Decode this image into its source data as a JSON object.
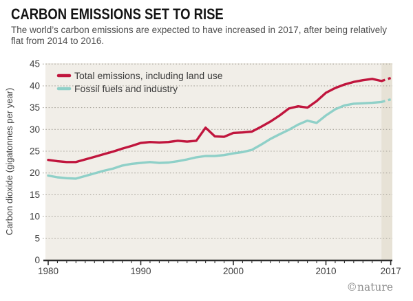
{
  "header": {
    "title": "CARBON EMISSIONS SET TO RISE",
    "subtitle_line1": "The world’s carbon emissions are expected to have increased in 2017, after being relatively",
    "subtitle_line2": "flat from 2014 to 2016."
  },
  "credit": "©nature",
  "colors": {
    "total": "#c0153d",
    "fossil": "#8fd0c8",
    "plot_bg": "#f1eee8",
    "projection_band": "#e7e2d6",
    "gridline": "#a9a59c",
    "axis": "#2b2b2b",
    "text": "#3d3d3d"
  },
  "chart_data": {
    "type": "line",
    "title": "CARBON EMISSIONS SET TO RISE",
    "xlabel": "",
    "ylabel": "Carbon dioxide (gigatonnes per year)",
    "ylim": [
      0,
      45
    ],
    "xlim": [
      1980,
      2017
    ],
    "grid": "horizontal-dotted",
    "legend_position": "top-left-inside",
    "projection_band_start": 2016,
    "y_ticks": [
      0,
      5,
      10,
      15,
      20,
      25,
      30,
      35,
      40,
      45
    ],
    "x_tick_labels": [
      1980,
      1990,
      2000,
      2010,
      2017
    ],
    "x": [
      1980,
      1981,
      1982,
      1983,
      1984,
      1985,
      1986,
      1987,
      1988,
      1989,
      1990,
      1991,
      1992,
      1993,
      1994,
      1995,
      1996,
      1997,
      1998,
      1999,
      2000,
      2001,
      2002,
      2003,
      2004,
      2005,
      2006,
      2007,
      2008,
      2009,
      2010,
      2011,
      2012,
      2013,
      2014,
      2015,
      2016,
      2017
    ],
    "series": [
      {
        "name": "Total emissions, including land use",
        "color": "#c0153d",
        "dashed_from": 2016,
        "values": [
          23.0,
          22.7,
          22.5,
          22.5,
          23.1,
          23.7,
          24.3,
          24.9,
          25.6,
          26.2,
          26.9,
          27.1,
          27.0,
          27.1,
          27.4,
          27.2,
          27.4,
          30.4,
          28.4,
          28.3,
          29.2,
          29.3,
          29.5,
          30.6,
          31.8,
          33.2,
          34.8,
          35.3,
          35.0,
          36.5,
          38.4,
          39.5,
          40.3,
          40.9,
          41.3,
          41.6,
          41.1,
          41.8
        ]
      },
      {
        "name": "Fossil fuels and industry",
        "color": "#8fd0c8",
        "dashed_from": 2016,
        "values": [
          19.4,
          19.0,
          18.8,
          18.7,
          19.3,
          19.9,
          20.5,
          21.0,
          21.7,
          22.1,
          22.3,
          22.5,
          22.3,
          22.4,
          22.7,
          23.1,
          23.6,
          23.9,
          23.9,
          24.1,
          24.5,
          24.8,
          25.3,
          26.5,
          27.8,
          28.9,
          29.9,
          31.1,
          32.0,
          31.5,
          33.2,
          34.6,
          35.5,
          35.9,
          36.0,
          36.1,
          36.3,
          36.9
        ]
      }
    ]
  }
}
